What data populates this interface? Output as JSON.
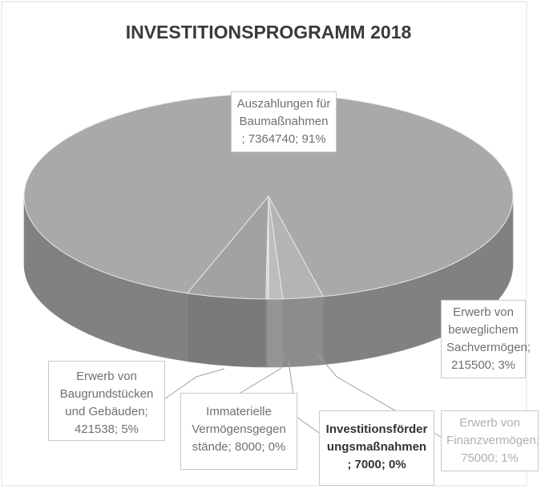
{
  "chart_data": {
    "type": "pie",
    "title": "INVESTITIONSPROGRAMM 2018",
    "categories": [
      "Auszahlungen für Baumaßnahmen",
      "Erwerb von beweglichem Sachvermögen",
      "Erwerb von Finanzvermögen",
      "Investitionsförder ungsmaßnahmen",
      "Immaterielle Vermögensgegen stände",
      "Erwerb von Baugrundstücken und Gebäuden"
    ],
    "values": [
      7364740,
      215500,
      75000,
      7000,
      8000,
      421538
    ],
    "value_labels": [
      "; 7364740; 91%",
      "; 215500; 3%",
      "; 75000; 1%",
      "; 7000; 0%",
      "; 8000; 0%",
      "; 421538; 5%"
    ],
    "colors": [
      "#a9a9a9",
      "#b4b4b4",
      "#bdbdbd",
      "#c8c8c8",
      "#b0b0b0",
      "#a2a2a2"
    ]
  }
}
